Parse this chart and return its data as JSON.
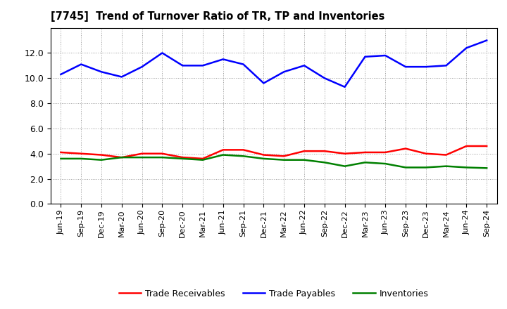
{
  "title": "[7745]  Trend of Turnover Ratio of TR, TP and Inventories",
  "labels": [
    "Jun-19",
    "Sep-19",
    "Dec-19",
    "Mar-20",
    "Jun-20",
    "Sep-20",
    "Dec-20",
    "Mar-21",
    "Jun-21",
    "Sep-21",
    "Dec-21",
    "Mar-22",
    "Jun-22",
    "Sep-22",
    "Dec-22",
    "Mar-23",
    "Jun-23",
    "Sep-23",
    "Dec-23",
    "Mar-24",
    "Jun-24",
    "Sep-24"
  ],
  "trade_receivables": [
    4.1,
    4.0,
    3.9,
    3.7,
    4.0,
    4.0,
    3.7,
    3.6,
    4.3,
    4.3,
    3.9,
    3.8,
    4.2,
    4.2,
    4.0,
    4.1,
    4.1,
    4.4,
    4.0,
    3.9,
    4.6,
    4.6
  ],
  "trade_payables": [
    10.3,
    11.1,
    10.5,
    10.1,
    10.9,
    12.0,
    11.0,
    11.0,
    11.5,
    11.1,
    9.6,
    10.5,
    11.0,
    10.0,
    9.3,
    11.7,
    11.8,
    10.9,
    10.9,
    11.0,
    12.4,
    13.0
  ],
  "inventories": [
    3.6,
    3.6,
    3.5,
    3.7,
    3.7,
    3.7,
    3.6,
    3.5,
    3.9,
    3.8,
    3.6,
    3.5,
    3.5,
    3.3,
    3.0,
    3.3,
    3.2,
    2.9,
    2.9,
    3.0,
    2.9,
    2.85
  ],
  "color_tr": "#ff0000",
  "color_tp": "#0000ff",
  "color_inv": "#008000",
  "ylim": [
    0.0,
    14.0
  ],
  "yticks": [
    0.0,
    2.0,
    4.0,
    6.0,
    8.0,
    10.0,
    12.0
  ],
  "legend_labels": [
    "Trade Receivables",
    "Trade Payables",
    "Inventories"
  ],
  "background_color": "#ffffff",
  "grid_color": "#999999",
  "line_width": 1.8
}
